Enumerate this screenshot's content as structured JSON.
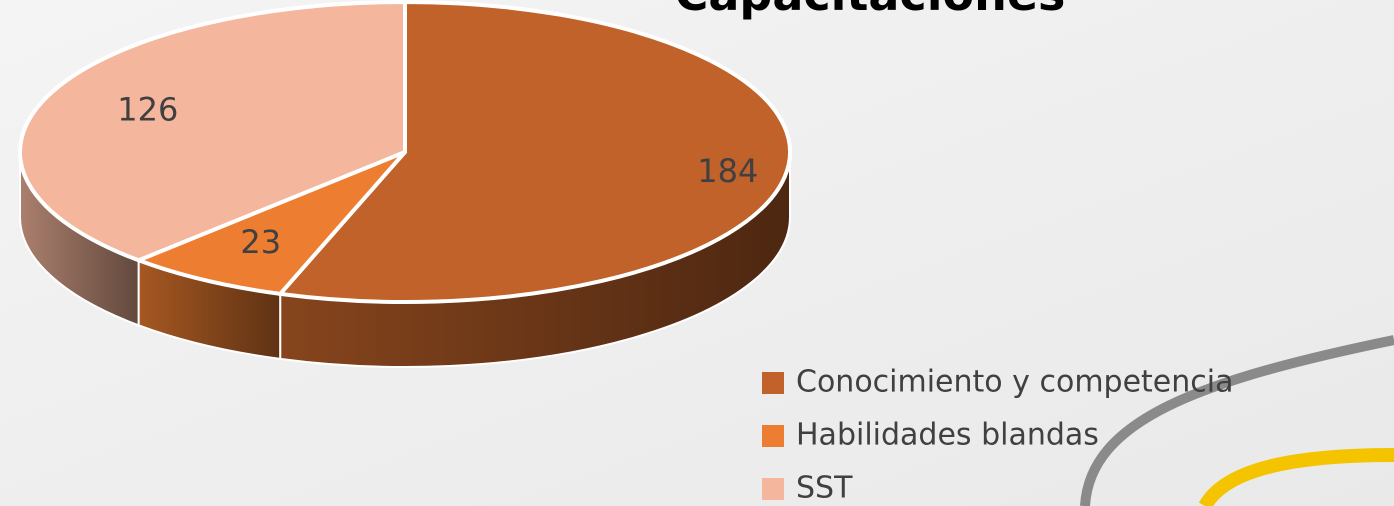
{
  "chart_data": {
    "type": "pie3d",
    "title": "Capacitaciones",
    "categories": [
      "Conocimiento y competencia",
      "Habilidades blandas",
      "SST"
    ],
    "values": [
      184,
      23,
      126
    ],
    "colors": [
      "#c0622a",
      "#ed7d31",
      "#f4b69c"
    ],
    "legend": "right"
  }
}
